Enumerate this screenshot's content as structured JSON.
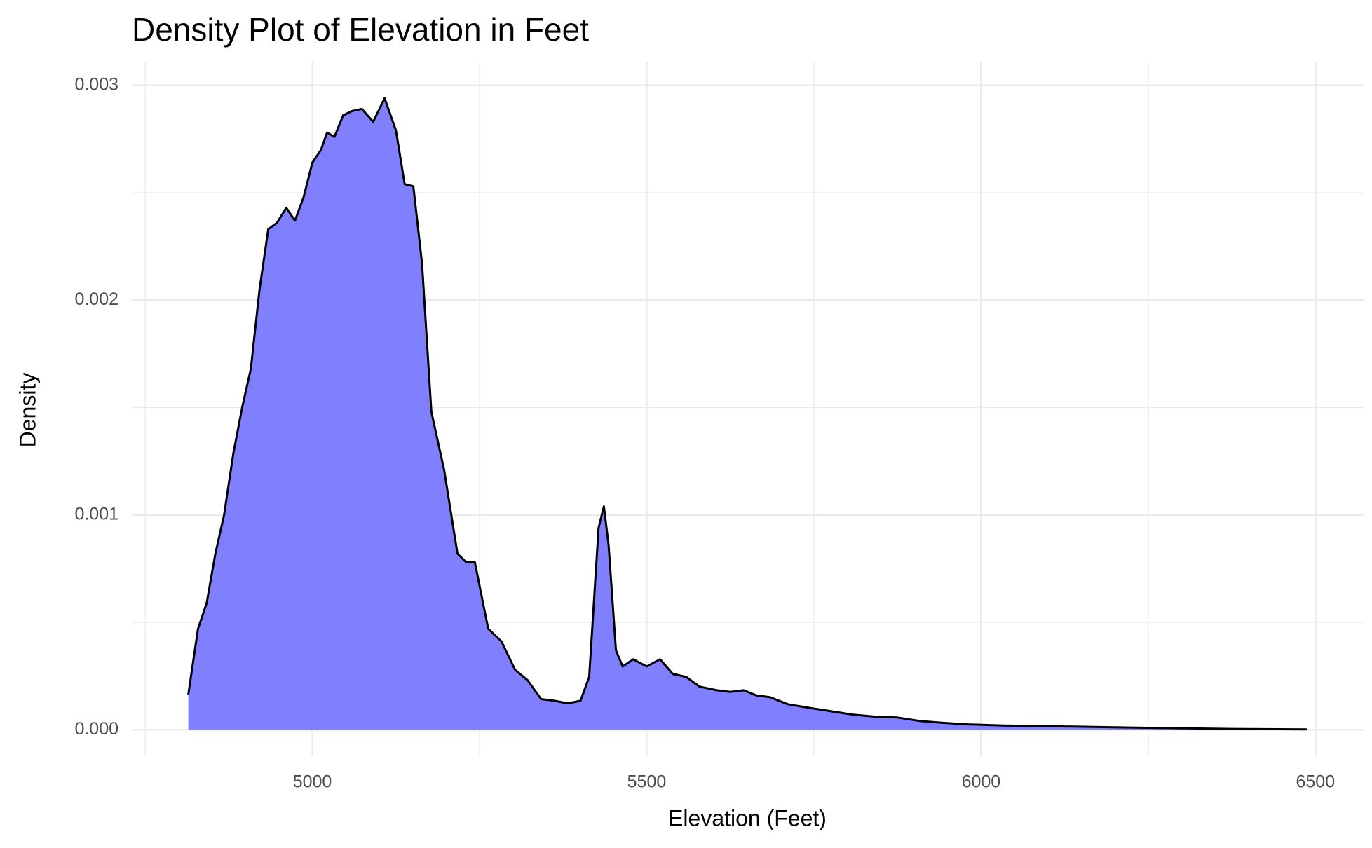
{
  "chart_data": {
    "type": "area",
    "title": "Density Plot of Elevation in Feet",
    "x_label": "Elevation (Feet)",
    "y_label": "Density",
    "x": [
      4814.5,
      4829,
      4842,
      4855,
      4868,
      4882,
      4895,
      4908,
      4921,
      4934,
      4947,
      4961,
      4974,
      4987,
      5000,
      5013,
      5022,
      5033,
      5046,
      5059,
      5074,
      5091,
      5108,
      5125,
      5138,
      5151,
      5164,
      5178,
      5197,
      5217,
      5230,
      5243,
      5263,
      5283,
      5303,
      5322,
      5342,
      5362,
      5382,
      5401,
      5414,
      5428,
      5436,
      5443,
      5454,
      5464,
      5480,
      5500,
      5520,
      5539,
      5559,
      5579,
      5605,
      5625,
      5645,
      5664,
      5684,
      5711,
      5743,
      5776,
      5809,
      5842,
      5875,
      5908,
      5941,
      5980,
      6033,
      6112,
      6191,
      6270,
      6375,
      6487
    ],
    "values": [
      0.000164,
      0.00047,
      0.00059,
      0.00082,
      0.001,
      0.00129,
      0.0015,
      0.00168,
      0.00205,
      0.00233,
      0.00236,
      0.00243,
      0.00237,
      0.00248,
      0.00264,
      0.0027,
      0.00278,
      0.00276,
      0.00286,
      0.00288,
      0.00289,
      0.00283,
      0.00294,
      0.00279,
      0.00254,
      0.00253,
      0.00217,
      0.00148,
      0.00121,
      0.00082,
      0.00078,
      0.00078,
      0.00047,
      0.00041,
      0.00028,
      0.00023,
      0.000143,
      0.000135,
      0.000123,
      0.000135,
      0.000246,
      0.00094,
      0.00104,
      0.00086,
      0.00037,
      0.000295,
      0.000328,
      0.000295,
      0.000328,
      0.00026,
      0.000246,
      0.000201,
      0.000184,
      0.000176,
      0.000184,
      0.00016,
      0.000152,
      0.000119,
      0.000102,
      8.6e-05,
      7e-05,
      6.1e-05,
      5.7e-05,
      4.1e-05,
      3.3e-05,
      2.5e-05,
      2e-05,
      1.6e-05,
      1.2e-05,
      8e-06,
      4e-06,
      2e-06
    ],
    "color": "#8080ff",
    "line_color": "#000000",
    "xlim": [
      4730,
      6572
    ],
    "ylim": [
      -0.000123,
      0.00311
    ],
    "xticks": [
      5000,
      5500,
      6000,
      6500
    ],
    "yticks": [
      {
        "value": 0,
        "label": "0.000"
      },
      0.001,
      0.002,
      0.003
    ],
    "x_minor_ticks": [
      4750,
      5250,
      5750,
      6250
    ],
    "y_minor_ticks": [
      0.0005,
      0.0015,
      0.0025
    ],
    "grid": true
  }
}
